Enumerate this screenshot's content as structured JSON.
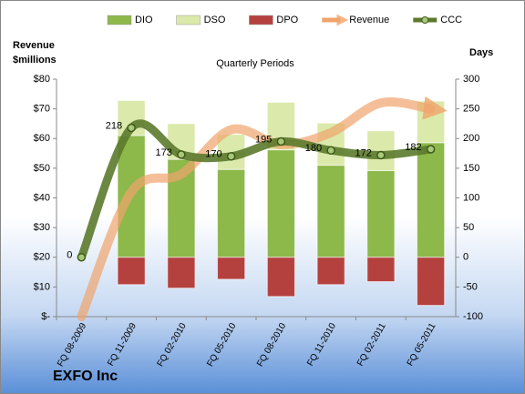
{
  "chart_data": {
    "type": "combo",
    "title": "Quarterly Periods",
    "y_label": [
      "Revenue",
      "$millions"
    ],
    "y2_label": "Days",
    "footer": "EXFO Inc",
    "categories": [
      "FQ 08-2009",
      "FQ 11-2009",
      "FQ 02-2010",
      "FQ 05-2010",
      "FQ 08-2010",
      "FQ 11-2010",
      "FQ 02-2011",
      "FQ 05-2011"
    ],
    "ylim": [
      0,
      80
    ],
    "yticks": [
      {
        "value": 0,
        "label": "$-"
      },
      {
        "value": 10,
        "label": "$10"
      },
      {
        "value": 20,
        "label": "$20"
      },
      {
        "value": 30,
        "label": "$30"
      },
      {
        "value": 40,
        "label": "$40"
      },
      {
        "value": 50,
        "label": "$50"
      },
      {
        "value": 60,
        "label": "$60"
      },
      {
        "value": 70,
        "label": "$70"
      },
      {
        "value": 80,
        "label": "$80"
      }
    ],
    "y2lim": [
      -100,
      300
    ],
    "y2ticks": [
      -100,
      -50,
      0,
      50,
      100,
      150,
      200,
      250,
      300
    ],
    "series": [
      {
        "name": "DIO",
        "type": "bar",
        "axis": "y2",
        "color": "#8db84a",
        "values": [
          0,
          205,
          165,
          148,
          181,
          155,
          146,
          193
        ]
      },
      {
        "name": "DSO",
        "type": "bar",
        "axis": "y2",
        "color": "#dbe9ab",
        "values": [
          0,
          59,
          60,
          59,
          80,
          71,
          67,
          70
        ]
      },
      {
        "name": "DPO",
        "type": "bar",
        "axis": "y2",
        "color": "#b5413f",
        "values": [
          0,
          -46,
          -52,
          -37,
          -66,
          -46,
          -41,
          -81
        ]
      },
      {
        "name": "Revenue",
        "type": "line",
        "axis": "y",
        "color": "#f0a46c",
        "values": [
          0,
          42,
          48,
          63,
          58,
          62,
          72,
          70
        ]
      },
      {
        "name": "CCC",
        "type": "line",
        "axis": "y2",
        "color": "#5b7a2c",
        "values": [
          0,
          218,
          173,
          170,
          195,
          180,
          172,
          182
        ],
        "labels": true
      }
    ]
  }
}
